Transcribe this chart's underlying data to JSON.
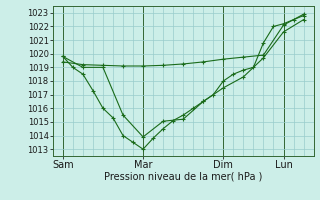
{
  "bg_color": "#cceee8",
  "grid_color": "#99cccc",
  "line_color": "#1a6b1a",
  "marker_color": "#1a6b1a",
  "ylabel_ticks": [
    1013,
    1014,
    1015,
    1016,
    1017,
    1018,
    1019,
    1020,
    1021,
    1022,
    1023
  ],
  "ylim": [
    1012.5,
    1023.5
  ],
  "xlabel": "Pression niveau de la mer( hPa )",
  "xtick_labels": [
    "Sam",
    "Mar",
    "Dim",
    "Lun"
  ],
  "xtick_positions": [
    0,
    8,
    16,
    22
  ],
  "num_x": 25,
  "vline_positions": [
    0,
    8,
    16,
    22
  ],
  "xlim": [
    -1,
    25
  ],
  "series1_x": [
    0,
    1,
    2,
    3,
    4,
    5,
    6,
    7,
    8,
    9,
    10,
    11,
    12,
    13,
    14,
    15,
    16,
    17,
    18,
    19,
    20,
    21,
    22,
    23,
    24
  ],
  "series1_y": [
    1019.8,
    1019.0,
    1018.5,
    1017.3,
    1016.0,
    1015.3,
    1014.0,
    1013.5,
    1013.0,
    1013.8,
    1014.5,
    1015.1,
    1015.5,
    1016.0,
    1016.5,
    1017.0,
    1018.0,
    1018.5,
    1018.8,
    1019.0,
    1020.8,
    1022.0,
    1022.2,
    1022.5,
    1022.8
  ],
  "series2_x": [
    0,
    2,
    4,
    6,
    8,
    10,
    12,
    14,
    16,
    18,
    20,
    22,
    24
  ],
  "series2_y": [
    1019.4,
    1019.2,
    1019.15,
    1019.1,
    1019.1,
    1019.15,
    1019.25,
    1019.4,
    1019.6,
    1019.75,
    1019.9,
    1022.1,
    1022.9
  ],
  "series3_x": [
    0,
    2,
    4,
    6,
    8,
    10,
    12,
    14,
    16,
    18,
    20,
    22,
    24
  ],
  "series3_y": [
    1019.8,
    1019.0,
    1019.0,
    1015.5,
    1013.9,
    1015.05,
    1015.2,
    1016.5,
    1017.5,
    1018.3,
    1019.7,
    1021.6,
    1022.5
  ]
}
